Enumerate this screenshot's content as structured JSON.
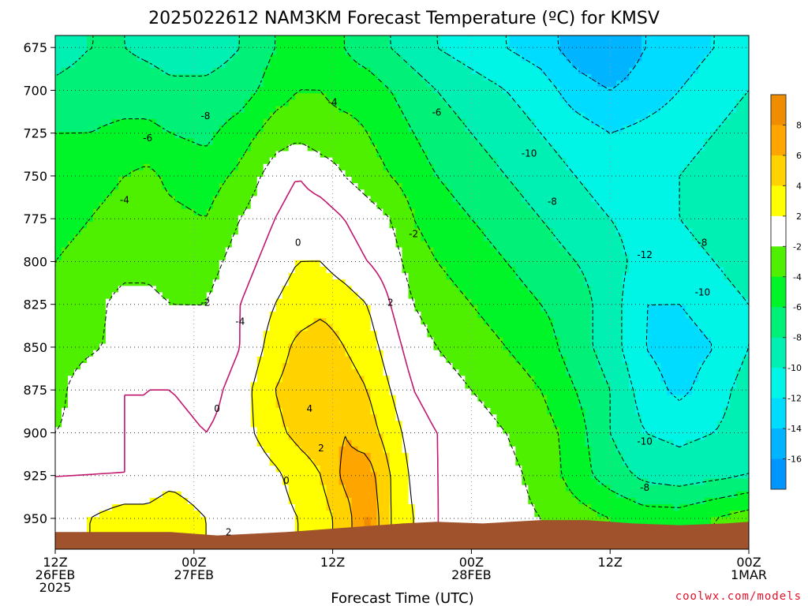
{
  "chart_data": {
    "type": "heatmap",
    "title": "2025022612  NAM3KM  Forecast  Temperature  (ºC)  for  KMSV",
    "xlabel": "Forecast Time (UTC)",
    "ylabel": "",
    "y_ticks": [
      "675",
      "700",
      "725",
      "750",
      "775",
      "800",
      "825",
      "850",
      "875",
      "900",
      "925",
      "950"
    ],
    "y_values": [
      675,
      700,
      725,
      750,
      775,
      800,
      825,
      850,
      875,
      900,
      925,
      950
    ],
    "ylim": [
      668,
      968
    ],
    "y_inverted": true,
    "x_ticks": [
      {
        "hour": 0,
        "lines": [
          "12Z",
          "26FEB",
          "2025"
        ]
      },
      {
        "hour": 12,
        "lines": [
          "00Z",
          "27FEB"
        ]
      },
      {
        "hour": 24,
        "lines": [
          "12Z"
        ]
      },
      {
        "hour": 36,
        "lines": [
          "00Z",
          "28FEB"
        ]
      },
      {
        "hour": 48,
        "lines": [
          "12Z"
        ]
      },
      {
        "hour": 60,
        "lines": [
          "00Z",
          "1MAR"
        ]
      }
    ],
    "xlim_hours": [
      0,
      60
    ],
    "grid": true,
    "colorbar": {
      "placement": "right",
      "labels": [
        "8",
        "6",
        "4",
        "2",
        "-2",
        "-4",
        "-6",
        "-8",
        "-10",
        "-12",
        "-14",
        "-16"
      ],
      "bands": [
        {
          "range": [
            8,
            10
          ],
          "color": "#f08c00"
        },
        {
          "range": [
            6,
            8
          ],
          "color": "#ffa500"
        },
        {
          "range": [
            4,
            6
          ],
          "color": "#ffd200"
        },
        {
          "range": [
            2,
            4
          ],
          "color": "#ffff00"
        },
        {
          "range": [
            -2,
            2
          ],
          "color": "#ffffff"
        },
        {
          "range": [
            -4,
            -2
          ],
          "color": "#4ef000"
        },
        {
          "range": [
            -6,
            -4
          ],
          "color": "#00f528"
        },
        {
          "range": [
            -8,
            -6
          ],
          "color": "#00f078"
        },
        {
          "range": [
            -10,
            -8
          ],
          "color": "#00f0b4"
        },
        {
          "range": [
            -12,
            -10
          ],
          "color": "#00f5e6"
        },
        {
          "range": [
            -14,
            -12
          ],
          "color": "#00dcff"
        },
        {
          "range": [
            -16,
            -14
          ],
          "color": "#00b4ff"
        },
        {
          "range": [
            -18,
            -16
          ],
          "color": "#0096ff"
        }
      ]
    },
    "temperature_field": {
      "hours": [
        0,
        3,
        6,
        8,
        10,
        13,
        16,
        19,
        21,
        23,
        25,
        27,
        29,
        31,
        33,
        36,
        39,
        42,
        45,
        48,
        51,
        54,
        57,
        60
      ],
      "pressure_levels": [
        675,
        700,
        725,
        750,
        775,
        800,
        825,
        850,
        875,
        900,
        925,
        950
      ],
      "values_degC": [
        [
          -9,
          -8,
          -8,
          -8.5,
          -9,
          -9,
          -8,
          -6,
          -5,
          -5,
          -6,
          -7,
          -8,
          -9,
          -10,
          -11,
          -12,
          -13,
          -15,
          -16,
          -14,
          -13,
          -12,
          -11
        ],
        [
          -7.5,
          -7,
          -7,
          -7,
          -7.5,
          -7.5,
          -7,
          -5,
          -4,
          -4,
          -5,
          -5,
          -6,
          -7,
          -8,
          -9,
          -10,
          -11,
          -13,
          -14,
          -13,
          -12,
          -11,
          -10
        ],
        [
          -6,
          -6,
          -5.5,
          -5.5,
          -6,
          -6.5,
          -5,
          -3,
          -2.5,
          -3,
          -3,
          -4,
          -5,
          -6,
          -7,
          -8,
          -9,
          -10,
          -11,
          -12,
          -11.5,
          -11,
          -10,
          -9
        ],
        [
          -5,
          -4.5,
          -4,
          -3.5,
          -4.5,
          -5,
          -3.5,
          -1,
          0,
          -1,
          -2,
          -3,
          -4,
          -5,
          -6,
          -7,
          -8,
          -9,
          -10,
          -11,
          -11,
          -10,
          -9,
          -8
        ],
        [
          -4.5,
          -4,
          -3.5,
          -3,
          -3.5,
          -4,
          -2,
          0,
          1,
          1,
          0,
          -1,
          -2,
          -4,
          -5,
          -6,
          -7,
          -8,
          -9,
          -10,
          -11,
          -10,
          -9,
          -8
        ],
        [
          -4,
          -3.5,
          -3,
          -2.5,
          -3,
          -3,
          -1,
          1,
          2,
          2,
          1,
          0,
          -1,
          -3,
          -4,
          -5,
          -6,
          -7,
          -8,
          -9,
          -11,
          -11,
          -10,
          -9
        ],
        [
          -4,
          -3,
          -1,
          -1.5,
          -2,
          -2,
          0,
          2,
          3,
          3.5,
          3,
          2,
          0,
          -2,
          -3,
          -4,
          -5,
          -6,
          -7,
          -9,
          -12,
          -12,
          -11,
          -10
        ],
        [
          -3.5,
          -2.5,
          -1,
          0,
          -1,
          -2,
          0,
          3,
          4.5,
          5,
          4,
          3,
          1,
          -1,
          -2,
          -3,
          -4,
          -5,
          -7,
          -9,
          -12,
          -13,
          -12,
          -10
        ],
        [
          -3,
          0,
          0,
          0,
          0,
          -1,
          1,
          4,
          5,
          5.5,
          5,
          4,
          2,
          0,
          -1,
          -2,
          -3,
          -4,
          -6,
          -8,
          -11,
          -12.5,
          -11,
          -9
        ],
        [
          -2,
          -1,
          0,
          0,
          1,
          0,
          1,
          3.5,
          4.5,
          5,
          6,
          5,
          3,
          1,
          0,
          -1,
          -2,
          -3,
          -5,
          -8,
          -10,
          -10.5,
          -10,
          -9
        ],
        [
          0,
          0,
          0,
          0,
          1,
          0,
          0,
          1.5,
          3,
          4,
          6.5,
          7,
          4,
          1.5,
          0,
          -1,
          -1.5,
          -2.5,
          -5,
          -7,
          -8.5,
          -9,
          -8.5,
          -8
        ],
        [
          1,
          2,
          3,
          3,
          4,
          2,
          1,
          1,
          2,
          3,
          5,
          8,
          4,
          2,
          0,
          -1,
          -1.5,
          -2,
          -3,
          -4,
          -5,
          -5,
          -4,
          -3
        ]
      ]
    },
    "contour_labels": [
      {
        "text": "-8",
        "hour": 13,
        "p": 715
      },
      {
        "text": "-6",
        "hour": 8,
        "p": 728
      },
      {
        "text": "-4",
        "hour": 24,
        "p": 707
      },
      {
        "text": "-6",
        "hour": 33,
        "p": 713
      },
      {
        "text": "-10",
        "hour": 41,
        "p": 737
      },
      {
        "text": "-4",
        "hour": 6,
        "p": 764
      },
      {
        "text": "-8",
        "hour": 43,
        "p": 765
      },
      {
        "text": "-2",
        "hour": 31,
        "p": 784
      },
      {
        "text": "0",
        "hour": 21,
        "p": 789
      },
      {
        "text": "-8",
        "hour": 56,
        "p": 789
      },
      {
        "text": "-12",
        "hour": 51,
        "p": 796
      },
      {
        "text": "-2",
        "hour": 13,
        "p": 824
      },
      {
        "text": "2",
        "hour": 29,
        "p": 824
      },
      {
        "text": "-10",
        "hour": 56,
        "p": 818
      },
      {
        "text": "-4",
        "hour": 16,
        "p": 835
      },
      {
        "text": "0",
        "hour": 14,
        "p": 886
      },
      {
        "text": "4",
        "hour": 22,
        "p": 886
      },
      {
        "text": "2",
        "hour": 23,
        "p": 909
      },
      {
        "text": "0",
        "hour": 20,
        "p": 928
      },
      {
        "text": "-10",
        "hour": 51,
        "p": 905
      },
      {
        "text": "-8",
        "hour": 51,
        "p": 932
      },
      {
        "text": "2",
        "hour": 15,
        "p": 958
      }
    ],
    "terrain": {
      "color": "#a0522d",
      "label": "ground"
    }
  },
  "credit": "coolwx.com/models"
}
